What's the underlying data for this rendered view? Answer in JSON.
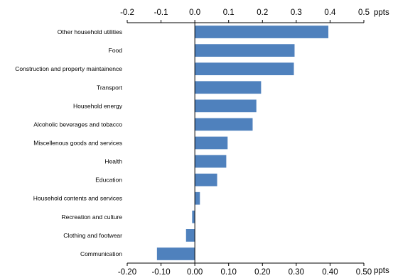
{
  "chart_data": {
    "type": "bar",
    "orientation": "horizontal",
    "categories": [
      "Other household utilities",
      "Food",
      "Construction and property maintainence",
      "Transport",
      "Household energy",
      "Alcoholic beverages and tobacco",
      "Miscellenous goods and services",
      "Health",
      "Education",
      "Household contents and services",
      "Recreation and culture",
      "Clothing and footwear",
      "Communication"
    ],
    "values": [
      0.395,
      0.295,
      0.293,
      0.196,
      0.182,
      0.171,
      0.097,
      0.093,
      0.066,
      0.015,
      -0.008,
      -0.026,
      -0.112
    ],
    "xlim": [
      -0.2,
      0.5
    ],
    "top_ticks": [
      "-0.2",
      "-0.1",
      "0.0",
      "0.1",
      "0.2",
      "0.3",
      "0.4",
      "0.5"
    ],
    "bottom_ticks": [
      "-0.20",
      "-0.10",
      "0.00",
      "0.10",
      "0.20",
      "0.30",
      "0.40",
      "0.50"
    ],
    "unit": "ppts",
    "bar_color": "#4F81BD",
    "grid": false
  }
}
